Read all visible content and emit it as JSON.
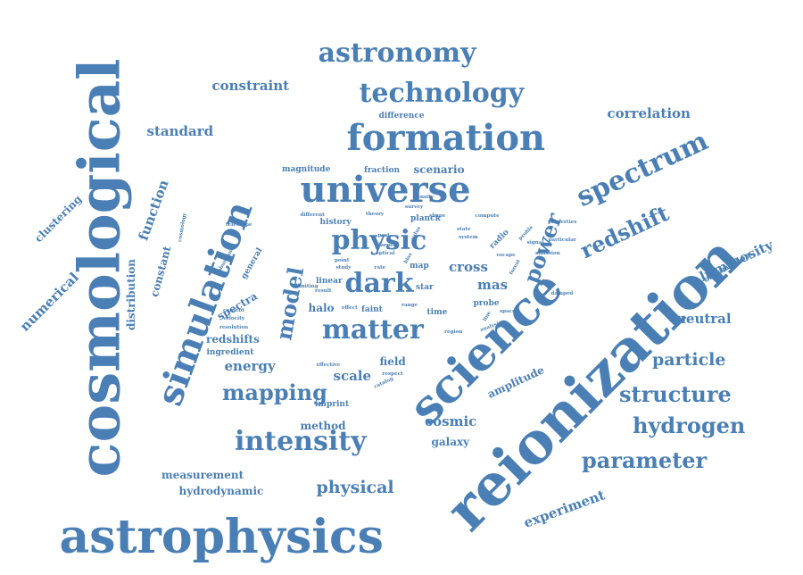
{
  "color": "#4a7fb5",
  "words": [
    {
      "text": "cosmological",
      "weight": 10,
      "rotation": -90
    },
    {
      "text": "reionization",
      "weight": 10,
      "rotation": -45
    },
    {
      "text": "astrophysics",
      "weight": 8,
      "rotation": 0
    },
    {
      "text": "science",
      "weight": 8,
      "rotation": -45
    },
    {
      "text": "formation",
      "weight": 7,
      "rotation": 0
    },
    {
      "text": "universe",
      "weight": 7,
      "rotation": 0
    },
    {
      "text": "simulation",
      "weight": 7,
      "rotation": -70
    },
    {
      "text": "astronomy",
      "weight": 6,
      "rotation": 0
    },
    {
      "text": "technology",
      "weight": 6,
      "rotation": 0
    },
    {
      "text": "physic",
      "weight": 6,
      "rotation": 0
    },
    {
      "text": "dark",
      "weight": 6,
      "rotation": 0
    },
    {
      "text": "matter",
      "weight": 6,
      "rotation": 0
    },
    {
      "text": "intensity",
      "weight": 6,
      "rotation": 0
    },
    {
      "text": "spectrum",
      "weight": 6,
      "rotation": -25
    },
    {
      "text": "redshift",
      "weight": 5,
      "rotation": -25
    },
    {
      "text": "power",
      "weight": 5,
      "rotation": -70
    },
    {
      "text": "model",
      "weight": 5,
      "rotation": -80
    },
    {
      "text": "mapping",
      "weight": 5,
      "rotation": 0
    },
    {
      "text": "structure",
      "weight": 5,
      "rotation": 0
    },
    {
      "text": "hydrogen",
      "weight": 5,
      "rotation": 0
    },
    {
      "text": "parameter",
      "weight": 5,
      "rotation": 0
    },
    {
      "text": "physical",
      "weight": 4,
      "rotation": 0
    },
    {
      "text": "particle",
      "weight": 4,
      "rotation": 0
    },
    {
      "text": "correlation",
      "weight": 3,
      "rotation": 0
    },
    {
      "text": "luminosity",
      "weight": 3,
      "rotation": -25
    },
    {
      "text": "neutral",
      "weight": 3,
      "rotation": 0
    },
    {
      "text": "function",
      "weight": 3,
      "rotation": -70
    },
    {
      "text": "cosmic",
      "weight": 3,
      "rotation": 0
    },
    {
      "text": "numerical",
      "weight": 3,
      "rotation": -45
    },
    {
      "text": "constraint",
      "weight": 3,
      "rotation": 0
    },
    {
      "text": "standard",
      "weight": 3,
      "rotation": 0
    },
    {
      "text": "experiment",
      "weight": 3,
      "rotation": -20
    },
    {
      "text": "energy",
      "weight": 3,
      "rotation": 0
    },
    {
      "text": "scale",
      "weight": 3,
      "rotation": 0
    },
    {
      "text": "mas",
      "weight": 3,
      "rotation": 0
    },
    {
      "text": "cross",
      "weight": 3,
      "rotation": 0
    },
    {
      "text": "galaxy",
      "weight": 2,
      "rotation": 0
    },
    {
      "text": "method",
      "weight": 2,
      "rotation": 0
    },
    {
      "text": "measurement",
      "weight": 2,
      "rotation": 0
    },
    {
      "text": "hydrodynamic",
      "weight": 2,
      "rotation": 0
    },
    {
      "text": "clustering",
      "weight": 2,
      "rotation": -45
    },
    {
      "text": "constant",
      "weight": 2,
      "rotation": -75
    },
    {
      "text": "distribution",
      "weight": 2,
      "rotation": -90
    },
    {
      "text": "field",
      "weight": 2,
      "rotation": 0
    },
    {
      "text": "halo",
      "weight": 2,
      "rotation": 0
    },
    {
      "text": "spectra",
      "weight": 2,
      "rotation": -30
    },
    {
      "text": "redshifts",
      "weight": 2,
      "rotation": 0
    },
    {
      "text": "scenario",
      "weight": 2,
      "rotation": 0
    },
    {
      "text": "amplitude",
      "weight": 2,
      "rotation": -25
    },
    {
      "text": "observation",
      "weight": 1,
      "rotation": -30
    },
    {
      "text": "general",
      "weight": 1,
      "rotation": -60
    },
    {
      "text": "imprint",
      "weight": 1,
      "rotation": 0
    },
    {
      "text": "faint",
      "weight": 1,
      "rotation": 0
    },
    {
      "text": "probe",
      "weight": 1,
      "rotation": 0
    },
    {
      "text": "radio",
      "weight": 1,
      "rotation": -45
    },
    {
      "text": "planck",
      "weight": 1,
      "rotation": 0
    },
    {
      "text": "linear",
      "weight": 1,
      "rotation": 0
    },
    {
      "text": "star",
      "weight": 1,
      "rotation": 0
    },
    {
      "text": "map",
      "weight": 1,
      "rotation": 0
    },
    {
      "text": "difference",
      "weight": 1,
      "rotation": 0
    },
    {
      "text": "magnitude",
      "weight": 1,
      "rotation": 0
    },
    {
      "text": "fraction",
      "weight": 1,
      "rotation": 0
    },
    {
      "text": "ingredient",
      "weight": 1,
      "rotation": 0
    },
    {
      "text": "history",
      "weight": 1,
      "rotation": 0
    },
    {
      "text": "time",
      "weight": 1,
      "rotation": 0
    },
    {
      "text": "cosmology",
      "weight": 0,
      "rotation": -80
    },
    {
      "text": "telescope",
      "weight": 0,
      "rotation": 0
    },
    {
      "text": "abundance",
      "weight": 0,
      "rotation": -60
    },
    {
      "text": "content",
      "weight": 0,
      "rotation": 0
    },
    {
      "text": "velocity",
      "weight": 0,
      "rotation": 0
    },
    {
      "text": "resolution",
      "weight": 0,
      "rotation": 0
    },
    {
      "text": "effective",
      "weight": 0,
      "rotation": 0
    },
    {
      "text": "respect",
      "weight": 0,
      "rotation": 0
    },
    {
      "text": "catalog",
      "weight": 0,
      "rotation": -25
    },
    {
      "text": "compute",
      "weight": 0,
      "rotation": 0
    },
    {
      "text": "properties",
      "weight": 0,
      "rotation": 0
    },
    {
      "text": "particular",
      "weight": 0,
      "rotation": 0
    },
    {
      "text": "signal",
      "weight": 0,
      "rotation": 0
    },
    {
      "text": "damped",
      "weight": 0,
      "rotation": 0
    },
    {
      "text": "space",
      "weight": 0,
      "rotation": 0
    },
    {
      "text": "analysis",
      "weight": 0,
      "rotation": -20
    },
    {
      "text": "emission",
      "weight": 0,
      "rotation": 0
    },
    {
      "text": "forest",
      "weight": 0,
      "rotation": -60
    },
    {
      "text": "line",
      "weight": 0,
      "rotation": -60
    },
    {
      "text": "region",
      "weight": 0,
      "rotation": 0
    },
    {
      "text": "different",
      "weight": 0,
      "rotation": 0
    },
    {
      "text": "density",
      "weight": 0,
      "rotation": 0
    },
    {
      "text": "survey",
      "weight": 0,
      "rotation": 0
    },
    {
      "text": "shape",
      "weight": 0,
      "rotation": 0
    },
    {
      "text": "point",
      "weight": 0,
      "rotation": 0
    },
    {
      "text": "study",
      "weight": 0,
      "rotation": 0
    },
    {
      "text": "rate",
      "weight": 0,
      "rotation": 0
    },
    {
      "text": "result",
      "weight": 0,
      "rotation": 0
    },
    {
      "text": "effect",
      "weight": 0,
      "rotation": 0
    },
    {
      "text": "range",
      "weight": 0,
      "rotation": 0
    },
    {
      "text": "state",
      "weight": 0,
      "rotation": 0
    },
    {
      "text": "system",
      "weight": 0,
      "rotation": 0
    },
    {
      "text": "escape",
      "weight": 0,
      "rotation": 0
    },
    {
      "text": "profile",
      "weight": 0,
      "rotation": -45
    },
    {
      "text": "larger",
      "weight": 0,
      "rotation": 0
    },
    {
      "text": "optical",
      "weight": 0,
      "rotation": 0
    },
    {
      "text": "value",
      "weight": 0,
      "rotation": -60
    },
    {
      "text": "theory",
      "weight": 0,
      "rotation": 0
    },
    {
      "text": "limiting",
      "weight": 0,
      "rotation": 0
    },
    {
      "text": "post",
      "weight": 0,
      "rotation": 0
    },
    {
      "text": "bias",
      "weight": 0,
      "rotation": -60
    }
  ]
}
